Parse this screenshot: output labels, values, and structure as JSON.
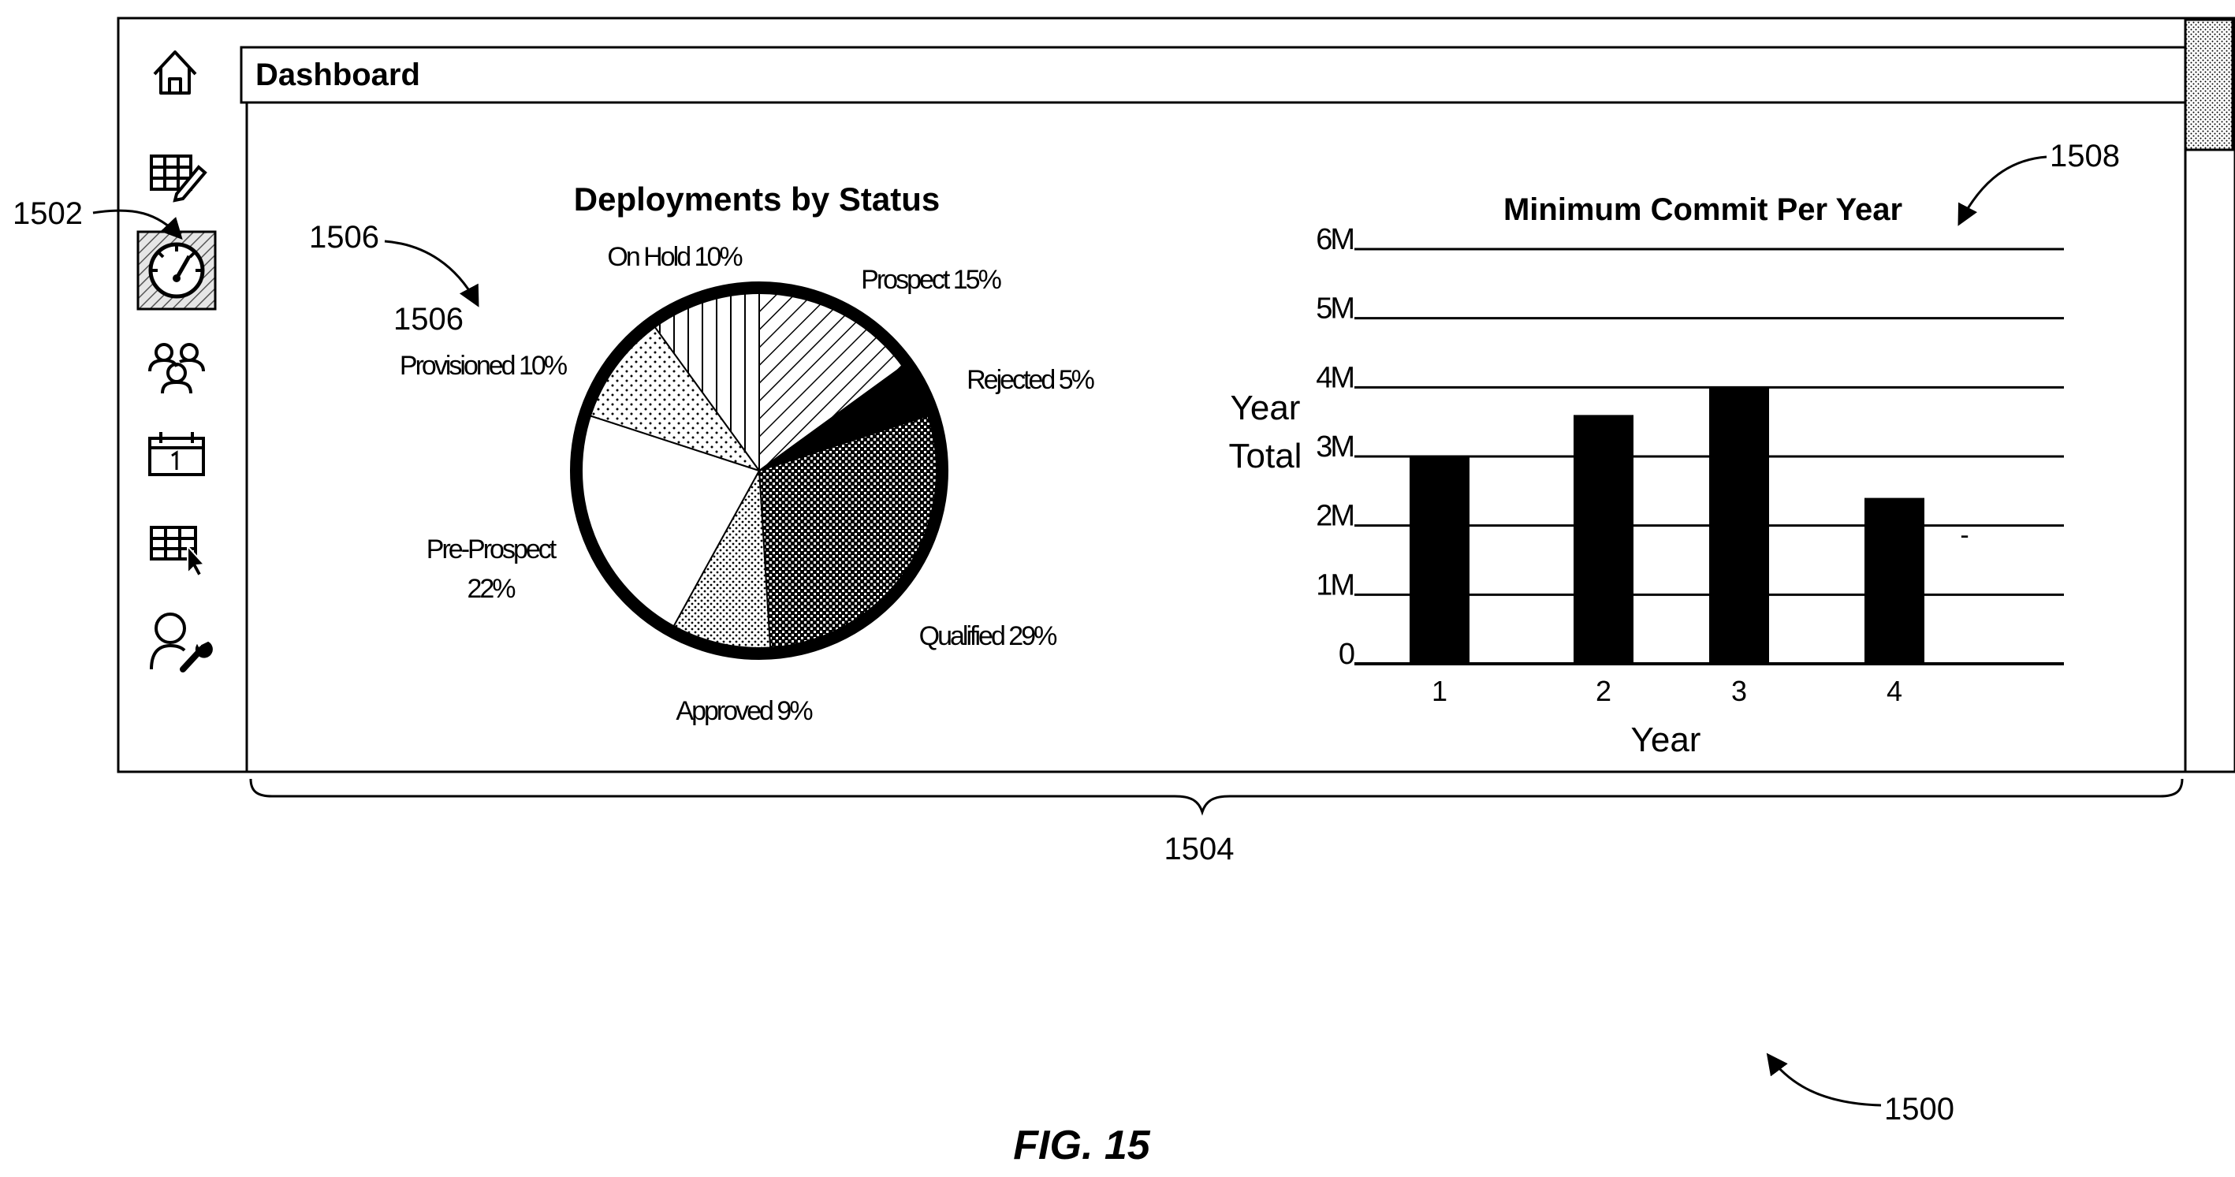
{
  "window": {
    "title": "Dashboard"
  },
  "sidebar": {
    "items": [
      {
        "icon": "home-icon",
        "selected": false
      },
      {
        "icon": "table-edit-icon",
        "selected": false
      },
      {
        "icon": "gauge-icon",
        "selected": true
      },
      {
        "icon": "users-icon",
        "selected": false
      },
      {
        "icon": "calendar-icon",
        "selected": false
      },
      {
        "icon": "table-select-icon",
        "selected": false
      },
      {
        "icon": "user-settings-icon",
        "selected": false
      }
    ]
  },
  "pie_chart": {
    "title": "Deployments by Status"
  },
  "bar_chart": {
    "title": "Minimum Commit Per Year",
    "ylabel_line1": "Year",
    "ylabel_line2": "Total",
    "xlabel": "Year",
    "stray_mark": "-"
  },
  "chart_data": [
    {
      "type": "pie",
      "title": "Deployments by Status",
      "slices": [
        {
          "label": "On Hold",
          "value": 10,
          "display": "On Hold 10%",
          "fill": "vertical-lines"
        },
        {
          "label": "Prospect",
          "value": 15,
          "display": "Prospect 15%",
          "fill": "diagonal-lines"
        },
        {
          "label": "Rejected",
          "value": 5,
          "display": "Rejected 5%",
          "fill": "solid-black"
        },
        {
          "label": "Qualified",
          "value": 29,
          "display": "Qualified 29%",
          "fill": "dense-crosshatch"
        },
        {
          "label": "Approved",
          "value": 9,
          "display": "Approved 9%",
          "fill": "dots"
        },
        {
          "label": "Pre-Prospect",
          "value": 22,
          "display_lines": [
            "Pre-Prospect",
            "22%"
          ],
          "fill": "white"
        },
        {
          "label": "Provisioned",
          "value": 10,
          "display": "Provisioned 10%",
          "fill": "sparse-dots"
        }
      ]
    },
    {
      "type": "bar",
      "title": "Minimum Commit Per Year",
      "categories": [
        "1",
        "2",
        "3",
        "4"
      ],
      "values": [
        3.0,
        3.6,
        4.0,
        2.4
      ],
      "unit": "M",
      "yticks": [
        "0",
        "1M",
        "2M",
        "3M",
        "4M",
        "5M",
        "6M"
      ],
      "ylim": [
        0,
        6
      ],
      "xlabel": "Year",
      "ylabel": "Year Total",
      "grid": true,
      "bar_color": "#000000"
    }
  ],
  "figure": {
    "caption": "FIG. 15",
    "refs": {
      "device": "1500",
      "selected_icon": "1502",
      "content_area": "1504",
      "pie_a": "1506",
      "pie_b": "1506",
      "bar_chart": "1508"
    }
  }
}
